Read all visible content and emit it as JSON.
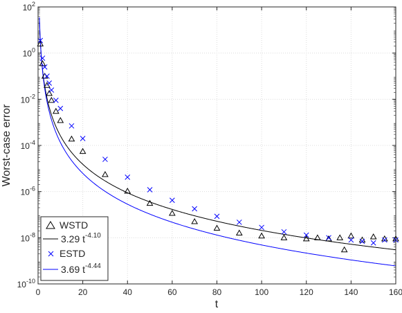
{
  "chart_data": {
    "type": "scatter",
    "xlabel": "t",
    "ylabel": "Worst-case error",
    "xlim": [
      0,
      160
    ],
    "ylim_log10": [
      -10,
      2
    ],
    "yscale": "log",
    "grid": true,
    "legend_position": "bottom-left",
    "x_ticks": [
      "0",
      "20",
      "40",
      "60",
      "80",
      "100",
      "120",
      "140",
      "160"
    ],
    "y_ticks": [
      {
        "base": "10",
        "exp": "2"
      },
      {
        "base": "10",
        "exp": "0"
      },
      {
        "base": "10",
        "exp": "-2"
      },
      {
        "base": "10",
        "exp": "-4"
      },
      {
        "base": "10",
        "exp": "-6"
      },
      {
        "base": "10",
        "exp": "-8"
      },
      {
        "base": "10",
        "exp": "-10"
      }
    ],
    "series": [
      {
        "name": "WSTD",
        "kind": "markers",
        "marker": "triangle",
        "color": "#000000",
        "x": [
          1,
          2,
          3,
          4,
          5,
          6,
          8,
          10,
          15,
          20,
          30,
          40,
          50,
          60,
          70,
          80,
          90,
          100,
          110,
          120,
          125,
          130,
          135,
          137,
          140,
          145,
          150,
          155,
          160
        ],
        "y": [
          2.5,
          0.35,
          0.1,
          0.04,
          0.018,
          0.009,
          0.003,
          0.0012,
          0.00019,
          5.5e-05,
          5.5e-06,
          1.05e-06,
          3.1e-07,
          1.15e-07,
          5e-08,
          2.6e-08,
          1.6e-08,
          1.2e-08,
          1e-08,
          9e-09,
          1e-08,
          9e-09,
          1e-08,
          3e-09,
          1.2e-08,
          8e-09,
          1.1e-08,
          9e-09,
          9e-09
        ]
      },
      {
        "name": "ESTD",
        "kind": "markers",
        "marker": "x",
        "color": "#0000ff",
        "x": [
          1,
          2,
          3,
          4,
          5,
          6,
          8,
          10,
          15,
          20,
          30,
          40,
          50,
          60,
          70,
          80,
          90,
          100,
          110,
          120,
          130,
          140,
          145,
          150,
          155,
          160
        ],
        "y": [
          3.5,
          0.6,
          0.25,
          0.1,
          0.05,
          0.025,
          0.009,
          0.004,
          0.0007,
          0.0002,
          2.5e-05,
          4.2e-06,
          1.2e-06,
          4.2e-07,
          1.8e-07,
          8.5e-08,
          4.7e-08,
          2.8e-08,
          1.8e-08,
          1.3e-08,
          1e-08,
          8e-09,
          7e-09,
          6e-09,
          8e-09,
          8e-09
        ]
      },
      {
        "name": "3.29 t^-4.10",
        "label_text": "3.29 t",
        "label_exp": "-4.10",
        "kind": "fit",
        "color": "#000000",
        "coef": 3.29,
        "exponent": -4.1
      },
      {
        "name": "3.69 t^-4.44",
        "label_text": "3.69 t",
        "label_exp": "-4.44",
        "kind": "fit",
        "color": "#0000ff",
        "coef": 3.69,
        "exponent": -4.44
      }
    ]
  }
}
